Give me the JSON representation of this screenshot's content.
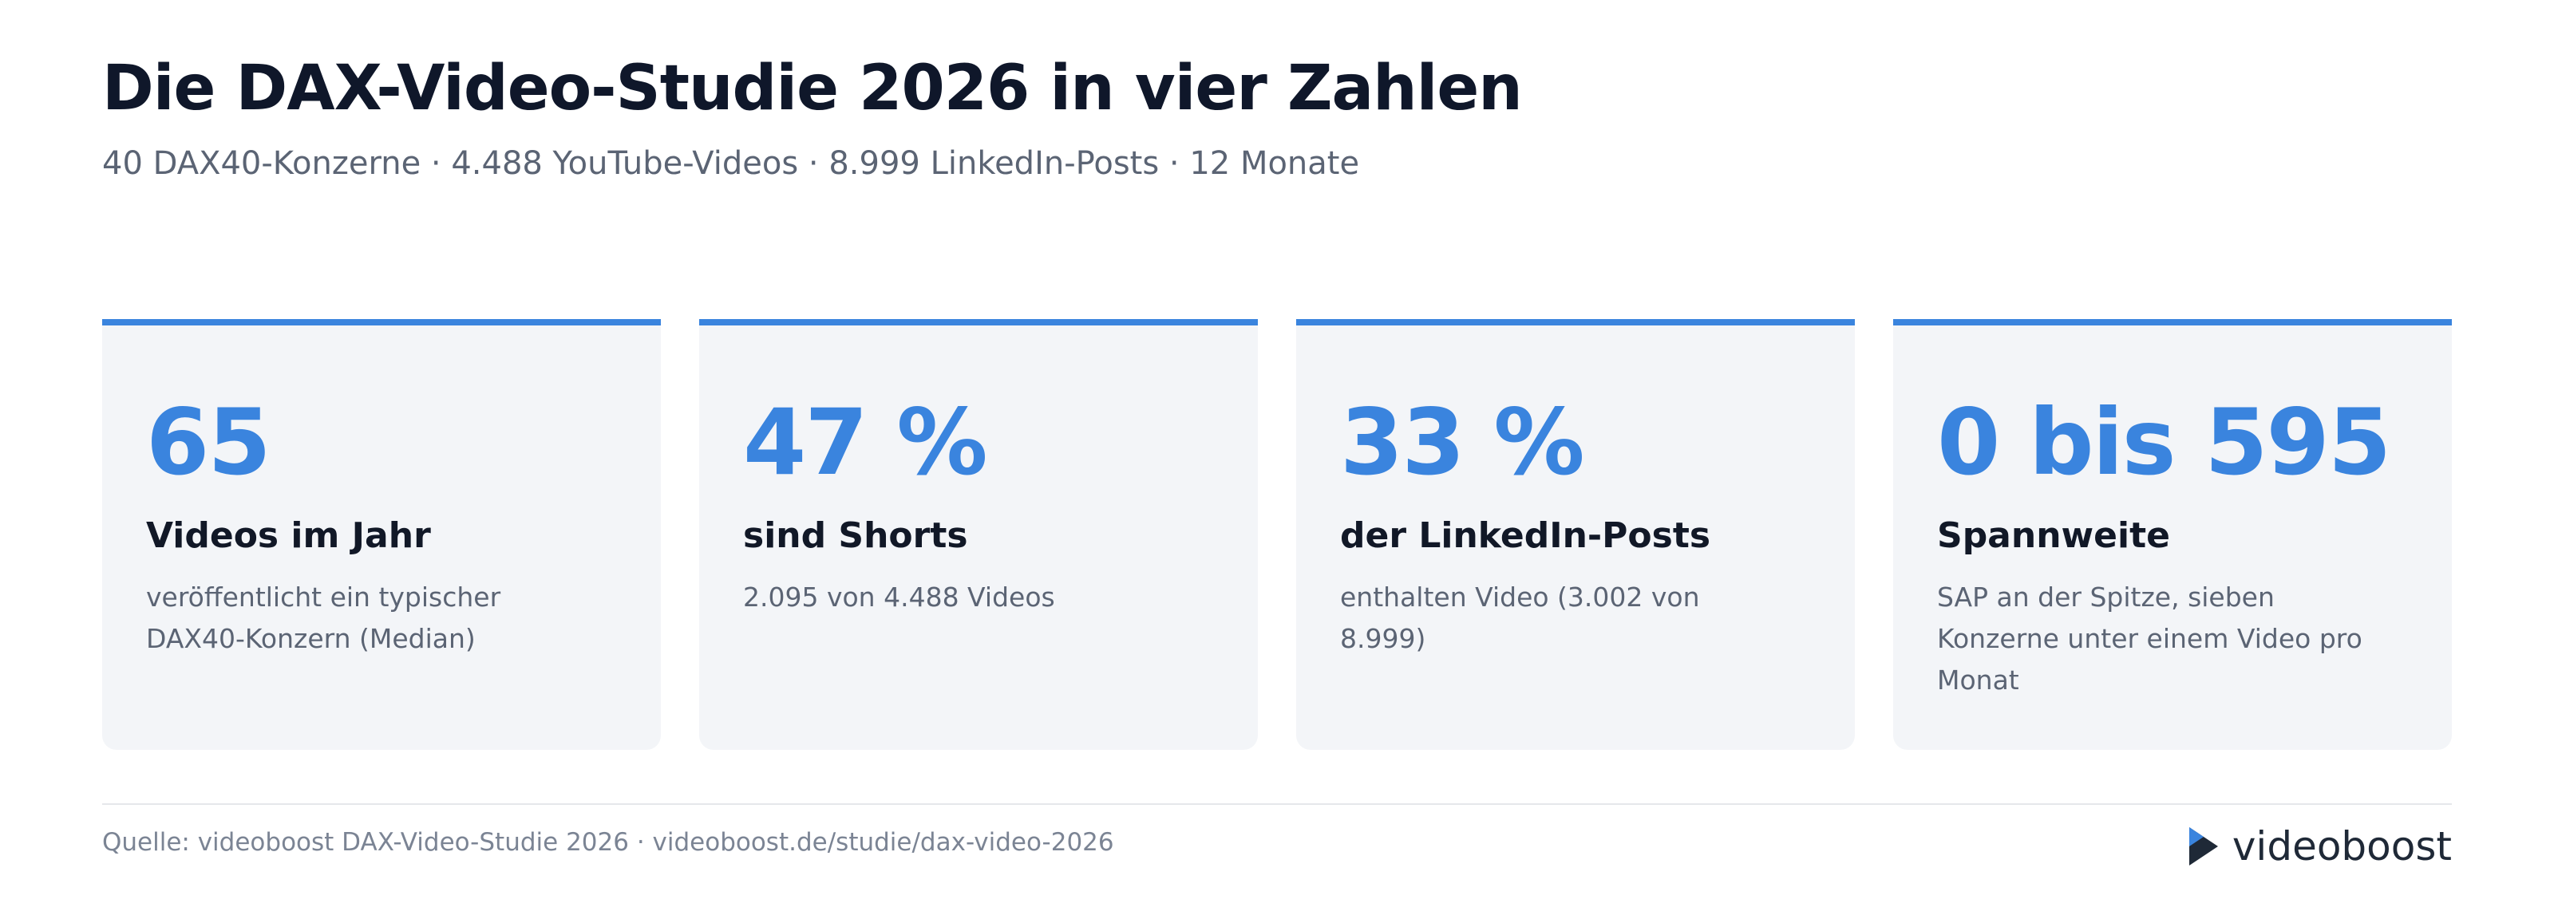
{
  "header": {
    "title": "Die DAX-Video-Studie 2026 in vier Zahlen",
    "subtitle": "40 DAX40-Konzerne · 4.488 YouTube-Videos · 8.999 LinkedIn-Posts · 12 Monate"
  },
  "cards": [
    {
      "value": "65",
      "label": "Videos im Jahr",
      "description": "veröffentlicht ein typischer DAX40-Konzern (Median)"
    },
    {
      "value": "47 %",
      "label": "sind Shorts",
      "description": "2.095 von 4.488 Videos"
    },
    {
      "value": "33 %",
      "label": "der LinkedIn-Posts",
      "description": "enthalten Video (3.002 von 8.999)"
    },
    {
      "value": "0 bis 595",
      "label": "Spannweite",
      "description": "SAP an der Spitze, sieben Konzerne unter einem Video pro Monat"
    }
  ],
  "footer": {
    "source": "Quelle: videoboost DAX-Video-Studie 2026 · videoboost.de/studie/dax-video-2026",
    "brand": "videoboost"
  }
}
